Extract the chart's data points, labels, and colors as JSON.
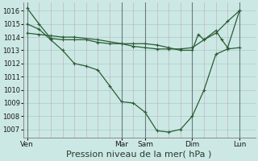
{
  "background_color": "#cce8e4",
  "grid_color_h": "#aaccc8",
  "grid_color_v": "#b8a8b8",
  "line_color": "#2a5c35",
  "marker_color": "#2a5c35",
  "x_ticks_labels": [
    "Ven",
    "Mar",
    "Sam",
    "Dim",
    "Lun"
  ],
  "x_ticks_pos": [
    0,
    48,
    60,
    84,
    108
  ],
  "xlim": [
    -2,
    116
  ],
  "ylim": [
    1006.4,
    1016.6
  ],
  "yticks": [
    1007,
    1008,
    1009,
    1010,
    1011,
    1012,
    1013,
    1014,
    1015,
    1016
  ],
  "xlabel": "Pression niveau de la mer( hPa )",
  "xlabel_fontsize": 8,
  "series1_x": [
    0,
    6,
    12,
    18,
    24,
    30,
    36,
    42,
    48,
    54,
    60,
    66,
    72,
    78,
    84,
    90,
    96,
    102,
    108
  ],
  "series1_y": [
    1016.2,
    1015.0,
    1013.9,
    1013.8,
    1013.8,
    1013.8,
    1013.6,
    1013.5,
    1013.5,
    1013.3,
    1013.2,
    1013.1,
    1013.1,
    1013.1,
    1013.2,
    1013.8,
    1014.3,
    1015.2,
    1016.0
  ],
  "series2_x": [
    0,
    6,
    12,
    18,
    24,
    30,
    36,
    42,
    48,
    54,
    60,
    66,
    72,
    78,
    84,
    90,
    96,
    102,
    108
  ],
  "series2_y": [
    1015.0,
    1014.6,
    1013.8,
    1013.0,
    1012.0,
    1011.8,
    1011.5,
    1010.3,
    1009.1,
    1009.0,
    1008.3,
    1006.9,
    1006.8,
    1007.0,
    1008.0,
    1010.0,
    1012.7,
    1013.1,
    1013.2
  ],
  "series3_x": [
    0,
    6,
    12,
    18,
    24,
    36,
    48,
    54,
    60,
    66,
    72,
    78,
    84,
    87,
    90,
    96,
    99,
    102,
    108
  ],
  "series3_y": [
    1014.3,
    1014.2,
    1014.1,
    1014.0,
    1014.0,
    1013.8,
    1013.5,
    1013.5,
    1013.5,
    1013.4,
    1013.2,
    1013.0,
    1013.0,
    1014.2,
    1013.8,
    1014.5,
    1013.8,
    1013.2,
    1016.0
  ]
}
